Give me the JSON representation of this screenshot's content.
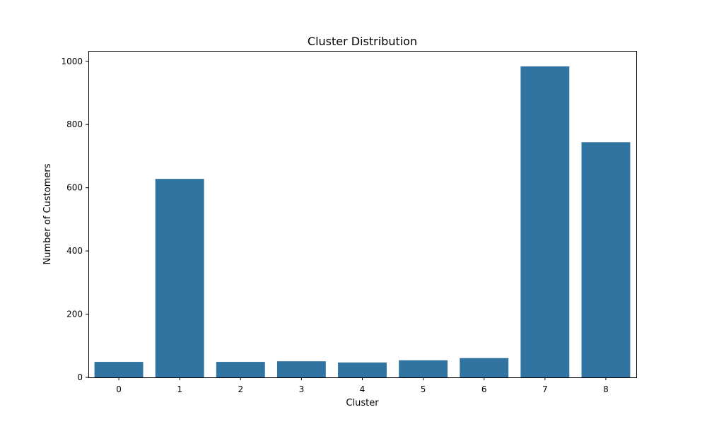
{
  "chart_data": {
    "type": "bar",
    "title": "Cluster Distribution",
    "xlabel": "Cluster",
    "ylabel": "Number of Customers",
    "categories": [
      "0",
      "1",
      "2",
      "3",
      "4",
      "5",
      "6",
      "7",
      "8"
    ],
    "values": [
      49,
      628,
      49,
      51,
      47,
      54,
      61,
      984,
      744
    ],
    "ylim": [
      0,
      1033
    ],
    "yticks": [
      0,
      200,
      400,
      600,
      800,
      1000
    ],
    "ytick_labels": [
      "0",
      "200",
      "400",
      "600",
      "800",
      "1000"
    ],
    "grid": false,
    "bar_color": "#3274a1"
  }
}
